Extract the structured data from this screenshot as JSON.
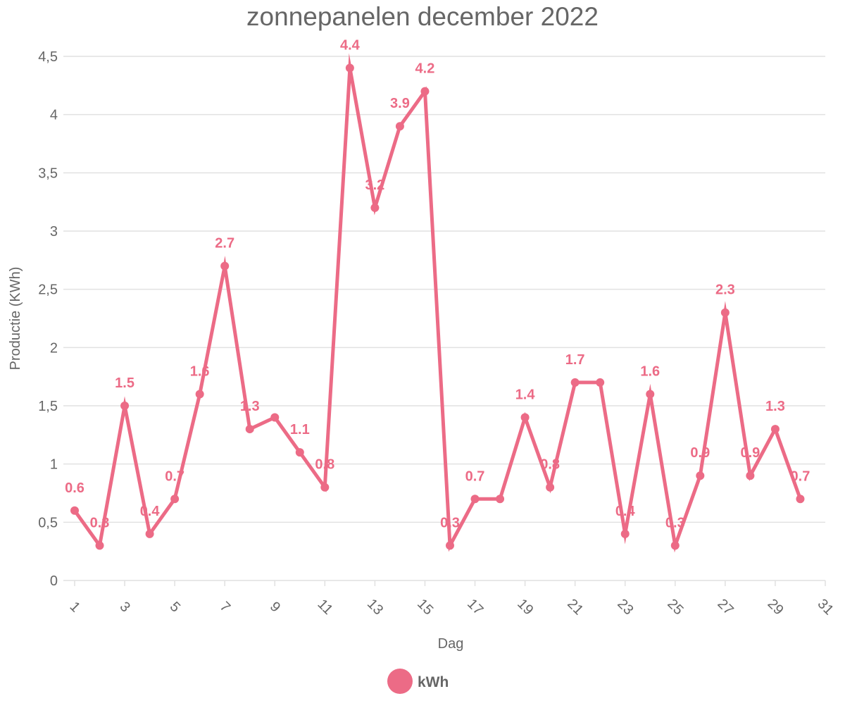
{
  "chart_data": {
    "type": "line",
    "title": "zonnepanelen december 2022",
    "xlabel": "Dag",
    "ylabel": "Productie (KWh)",
    "xlim": [
      1,
      31
    ],
    "ylim": [
      0,
      4.5
    ],
    "x_ticks": [
      "1",
      "3",
      "5",
      "7",
      "9",
      "11",
      "13",
      "15",
      "17",
      "19",
      "21",
      "23",
      "25",
      "27",
      "29",
      "31"
    ],
    "y_ticks": [
      "0",
      "0,5",
      "1",
      "1,5",
      "2",
      "2,5",
      "3",
      "3,5",
      "4",
      "4,5"
    ],
    "grid": true,
    "legend_position": "bottom",
    "series": [
      {
        "name": "kWh",
        "color": "#ec6b86",
        "x": [
          1,
          2,
          3,
          4,
          5,
          6,
          7,
          8,
          9,
          10,
          11,
          12,
          13,
          14,
          15,
          16,
          17,
          18,
          19,
          20,
          21,
          22,
          23,
          24,
          25,
          26,
          27,
          28,
          29,
          30
        ],
        "values": [
          0.6,
          0.3,
          1.5,
          0.4,
          0.7,
          1.6,
          2.7,
          1.3,
          1.4,
          1.1,
          0.8,
          4.4,
          3.2,
          3.9,
          4.2,
          0.3,
          0.7,
          0.7,
          1.4,
          0.8,
          1.7,
          1.7,
          0.4,
          1.6,
          0.3,
          0.9,
          2.3,
          0.9,
          1.3,
          0.7
        ],
        "data_labels": [
          "0.6",
          "0.3",
          "1.5",
          "0.4",
          "0.7",
          "1.6",
          "2.7",
          "1.3",
          "",
          "1.1",
          "0.8",
          "4.4",
          "3.2",
          "3.9",
          "4.2",
          "0.3",
          "0.7",
          "",
          "1.4",
          "0.8",
          "1.7",
          "",
          "0.4",
          "1.6",
          "0.3",
          "0.9",
          "2.3",
          "0.9",
          "1.3",
          "0.7"
        ]
      }
    ]
  }
}
